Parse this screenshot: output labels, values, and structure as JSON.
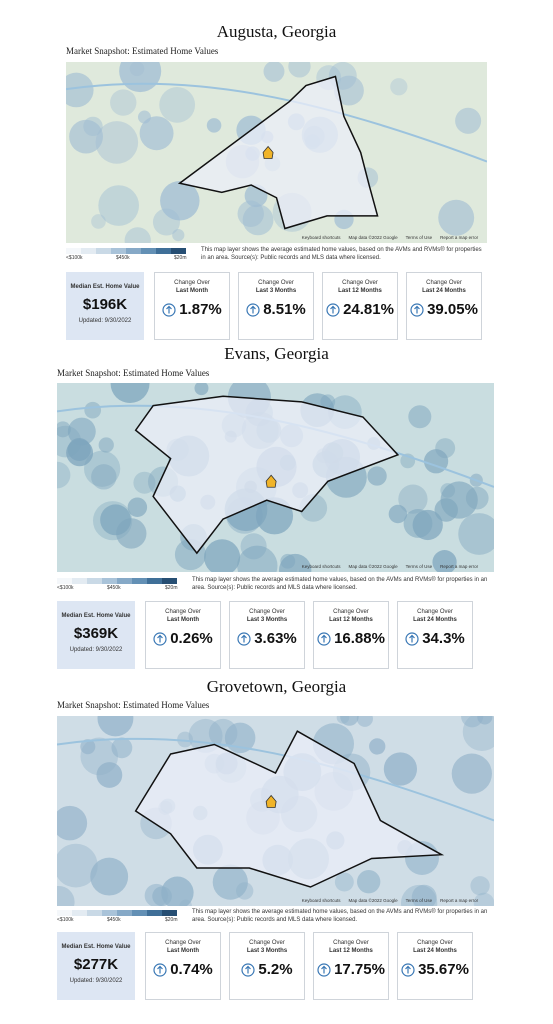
{
  "sections": [
    {
      "title": "Augusta, Georgia",
      "subtitle": "Market Snapshot: Estimated Home Values",
      "map_attribution": [
        "Keyboard shortcuts",
        "Map data ©2022 Google",
        "Terms of Use",
        "Report a map error"
      ],
      "legend": [
        "<$100k",
        "$450k",
        "$20m"
      ],
      "note": "This map layer shows the average estimated home values, based on the AVMs and RVMs® for properties in an area. Source(s): Public records and MLS data where licensed.",
      "median": {
        "label": "Median Est. Home Value",
        "value": "$196K",
        "updated": "Updated: 9/30/2022"
      },
      "changes": [
        {
          "label": "Change Over",
          "period": "Last Month",
          "value": "1.87%"
        },
        {
          "label": "Change Over",
          "period": "Last 3 Months",
          "value": "8.51%"
        },
        {
          "label": "Change Over",
          "period": "Last 12 Months",
          "value": "24.81%"
        },
        {
          "label": "Change Over",
          "period": "Last 24 Months",
          "value": "39.05%"
        }
      ]
    },
    {
      "title": "Evans, Georgia",
      "subtitle": "Market Snapshot: Estimated Home Values",
      "map_attribution": [
        "Keyboard shortcuts",
        "Map data ©2022 Google",
        "Terms of Use",
        "Report a map error"
      ],
      "legend": [
        "<$100k",
        "$450k",
        "$20m"
      ],
      "note": "This map layer shows the average estimated home values, based on the AVMs and RVMs® for properties in an area. Source(s): Public records and MLS data where licensed.",
      "median": {
        "label": "Median Est. Home Value",
        "value": "$369K",
        "updated": "Updated: 9/30/2022"
      },
      "changes": [
        {
          "label": "Change Over",
          "period": "Last Month",
          "value": "0.26%"
        },
        {
          "label": "Change Over",
          "period": "Last 3 Months",
          "value": "3.63%"
        },
        {
          "label": "Change Over",
          "period": "Last 12 Months",
          "value": "16.88%"
        },
        {
          "label": "Change Over",
          "period": "Last 24 Months",
          "value": "34.3%"
        }
      ]
    },
    {
      "title": "Grovetown, Georgia",
      "subtitle": "Market Snapshot: Estimated Home Values",
      "map_attribution": [
        "Keyboard shortcuts",
        "Map data ©2022 Google",
        "Terms of Use",
        "Report a map error"
      ],
      "legend": [
        "<$100k",
        "$450k",
        "$20m"
      ],
      "note": "This map layer shows the average estimated home values, based on the AVMs and RVMs® for properties in an area. Source(s): Public records and MLS data where licensed.",
      "median": {
        "label": "Median Est. Home Value",
        "value": "$277K",
        "updated": "Updated: 9/30/2022"
      },
      "changes": [
        {
          "label": "Change Over",
          "period": "Last Month",
          "value": "0.74%"
        },
        {
          "label": "Change Over",
          "period": "Last 3 Months",
          "value": "5.2%"
        },
        {
          "label": "Change Over",
          "period": "Last 12 Months",
          "value": "17.75%"
        },
        {
          "label": "Change Over",
          "period": "Last 24 Months",
          "value": "35.67%"
        }
      ]
    }
  ]
}
